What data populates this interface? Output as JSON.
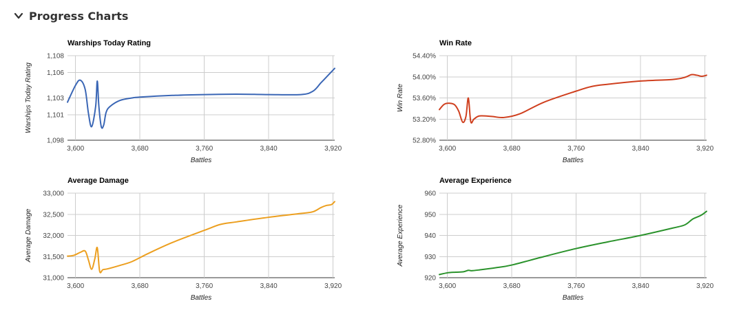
{
  "section": {
    "title": "Progress Charts",
    "icon": "chevron-down-icon"
  },
  "chart_data": [
    {
      "type": "line",
      "title": "Warships Today Rating",
      "xlabel": "Battles",
      "ylabel": "Warships Today Rating",
      "color": "#3a66b5",
      "xlim": [
        3590,
        3922
      ],
      "ylim": [
        1098,
        1108
      ],
      "xticks": [
        3600,
        3680,
        3760,
        3840,
        3920
      ],
      "xtick_labels": [
        "3,600",
        "3,680",
        "3,760",
        "3,840",
        "3,920"
      ],
      "yticks": [
        1098,
        1101,
        1103,
        1106,
        1108
      ],
      "ytick_labels": [
        "1,098",
        "1,101",
        "1,103",
        "1,106",
        "1,108"
      ],
      "x": [
        3590,
        3600,
        3606,
        3612,
        3616,
        3620,
        3625,
        3627,
        3629,
        3632,
        3635,
        3638,
        3643,
        3655,
        3670,
        3680,
        3720,
        3760,
        3800,
        3840,
        3880,
        3895,
        3905,
        3915,
        3922
      ],
      "y": [
        1102.5,
        1104.5,
        1105.1,
        1104.0,
        1101.2,
        1099.6,
        1102.0,
        1105.0,
        1102.0,
        1099.6,
        1099.8,
        1101.3,
        1102.0,
        1102.7,
        1103.0,
        1103.1,
        1103.3,
        1103.4,
        1103.45,
        1103.4,
        1103.4,
        1103.8,
        1104.8,
        1105.8,
        1106.5
      ]
    },
    {
      "type": "line",
      "title": "Win Rate",
      "xlabel": "Battles",
      "ylabel": "Win Rate",
      "color": "#cf3f1e",
      "xlim": [
        3590,
        3922
      ],
      "ylim": [
        52.8,
        54.4
      ],
      "xticks": [
        3600,
        3680,
        3760,
        3840,
        3920
      ],
      "xtick_labels": [
        "3,600",
        "3,680",
        "3,760",
        "3,840",
        "3,920"
      ],
      "yticks": [
        52.8,
        53.2,
        53.6,
        54.0,
        54.4
      ],
      "ytick_labels": [
        "52.80%",
        "53.20%",
        "53.60%",
        "54.00%",
        "54.40%"
      ],
      "x": [
        3590,
        3596,
        3603,
        3609,
        3614,
        3619,
        3623,
        3626,
        3629,
        3633,
        3640,
        3655,
        3670,
        3690,
        3720,
        3760,
        3780,
        3800,
        3840,
        3880,
        3895,
        3903,
        3910,
        3916,
        3922
      ],
      "y": [
        53.38,
        53.48,
        53.5,
        53.47,
        53.35,
        53.14,
        53.25,
        53.6,
        53.15,
        53.2,
        53.26,
        53.25,
        53.23,
        53.3,
        53.52,
        53.73,
        53.82,
        53.86,
        53.92,
        53.95,
        53.99,
        54.04,
        54.03,
        54.01,
        54.03
      ]
    },
    {
      "type": "line",
      "title": "Average Damage",
      "xlabel": "Battles",
      "ylabel": "Average Damage",
      "color": "#ec9f1f",
      "xlim": [
        3590,
        3922
      ],
      "ylim": [
        31000,
        33000
      ],
      "xticks": [
        3600,
        3680,
        3760,
        3840,
        3920
      ],
      "xtick_labels": [
        "3,600",
        "3,680",
        "3,760",
        "3,840",
        "3,920"
      ],
      "yticks": [
        31000,
        31500,
        32000,
        32500,
        33000
      ],
      "ytick_labels": [
        "31,000",
        "31,500",
        "32,000",
        "32,500",
        "33,000"
      ],
      "x": [
        3590,
        3598,
        3606,
        3612,
        3616,
        3620,
        3624,
        3627,
        3630,
        3634,
        3640,
        3655,
        3670,
        3690,
        3720,
        3760,
        3780,
        3800,
        3840,
        3880,
        3895,
        3905,
        3912,
        3918,
        3922
      ],
      "y": [
        31510,
        31530,
        31600,
        31630,
        31420,
        31200,
        31450,
        31710,
        31150,
        31190,
        31210,
        31290,
        31380,
        31570,
        31830,
        32120,
        32260,
        32320,
        32430,
        32520,
        32560,
        32660,
        32710,
        32730,
        32800
      ]
    },
    {
      "type": "line",
      "title": "Average Experience",
      "xlabel": "Battles",
      "ylabel": "Average Experience",
      "color": "#2a922b",
      "xlim": [
        3590,
        3922
      ],
      "ylim": [
        920,
        960
      ],
      "xticks": [
        3600,
        3680,
        3760,
        3840,
        3920
      ],
      "xtick_labels": [
        "3,600",
        "3,680",
        "3,760",
        "3,840",
        "3,920"
      ],
      "yticks": [
        920,
        930,
        940,
        950,
        960
      ],
      "ytick_labels": [
        "920",
        "930",
        "940",
        "950",
        "960"
      ],
      "x": [
        3590,
        3600,
        3610,
        3620,
        3626,
        3630,
        3640,
        3660,
        3680,
        3720,
        3760,
        3800,
        3840,
        3880,
        3895,
        3905,
        3915,
        3922
      ],
      "y": [
        921.5,
        922.3,
        922.6,
        922.8,
        923.5,
        923.3,
        923.7,
        924.7,
        926.0,
        930.0,
        933.8,
        937.0,
        940.0,
        943.5,
        945.0,
        947.8,
        949.5,
        951.4
      ]
    }
  ]
}
